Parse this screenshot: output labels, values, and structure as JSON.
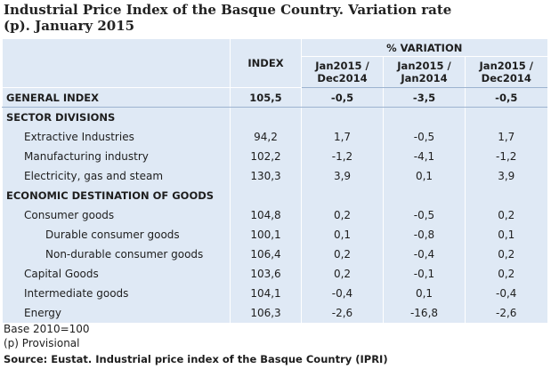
{
  "header": {
    "title": "Industrial Price Index of the Basque Country. Variation rate (p). January 2015"
  },
  "table": {
    "index_label": "INDEX",
    "variation_label": "% VARIATION",
    "columns": [
      "Jan2015 / Dec2014",
      "Jan2015 / Jan2014",
      "Jan2015 / Dec2014"
    ],
    "rows": [
      [
        "GENERAL INDEX",
        "105,5",
        "-0,5",
        "-3,5",
        "-0,5"
      ],
      [
        "SECTOR DIVISIONS"
      ],
      [
        "Extractive Industries",
        "94,2",
        "1,7",
        "-0,5",
        "1,7"
      ],
      [
        "Manufacturing industry",
        "102,2",
        "-1,2",
        "-4,1",
        "-1,2"
      ],
      [
        "Electricity, gas and steam",
        "130,3",
        "3,9",
        "0,1",
        "3,9"
      ],
      [
        "ECONOMIC DESTINATION OF GOODS"
      ],
      [
        "Consumer goods",
        "104,8",
        "0,2",
        "-0,5",
        "0,2"
      ],
      [
        "Durable consumer goods",
        "100,1",
        "0,1",
        "-0,8",
        "0,1"
      ],
      [
        "Non-durable consumer goods",
        "106,4",
        "0,2",
        "-0,4",
        "0,2"
      ],
      [
        "Capital Goods",
        "103,6",
        "0,2",
        "-0,1",
        "0,2"
      ],
      [
        "Intermediate goods",
        "104,1",
        "-0,4",
        "0,1",
        "-0,4"
      ],
      [
        "Energy",
        "106,3",
        "-2,6",
        "-16,8",
        "-2,6"
      ]
    ]
  },
  "footer": {
    "notes": [
      "Base 2010=100",
      "(p) Provisional"
    ],
    "source": "Source: Eustat. Industrial price index of the Basque Country (IPRI)"
  }
}
